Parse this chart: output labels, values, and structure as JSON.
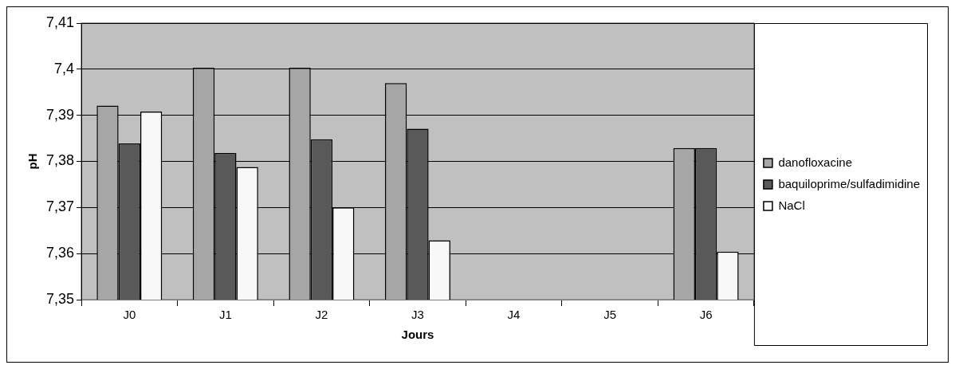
{
  "chart_data": {
    "type": "bar",
    "xlabel": "Jours",
    "ylabel": "pH",
    "categories": [
      "J0",
      "J1",
      "J2",
      "J3",
      "J4",
      "J5",
      "J6"
    ],
    "series": [
      {
        "name": "danofloxacine",
        "color": "#a6a6a6",
        "values": [
          7.3921,
          7.4003,
          7.4003,
          7.397,
          null,
          null,
          7.3829
        ]
      },
      {
        "name": "baquiloprime/sulfadimidine",
        "color": "#595959",
        "values": [
          7.3839,
          7.3818,
          7.3848,
          7.3871,
          null,
          null,
          7.3829
        ]
      },
      {
        "name": "NaCl",
        "color": "#f8f8f8",
        "values": [
          7.3908,
          7.3788,
          7.37,
          7.3629,
          null,
          null,
          7.3604
        ]
      }
    ],
    "ylim": [
      7.35,
      7.41
    ],
    "yticks": [
      {
        "value": 7.35,
        "label": "7,35"
      },
      {
        "value": 7.36,
        "label": "7,36"
      },
      {
        "value": 7.37,
        "label": "7,37"
      },
      {
        "value": 7.38,
        "label": "7,38"
      },
      {
        "value": 7.39,
        "label": "7,39"
      },
      {
        "value": 7.4,
        "label": "7,4"
      },
      {
        "value": 7.41,
        "label": "7,41"
      }
    ],
    "grid": "y",
    "legend": "right"
  }
}
